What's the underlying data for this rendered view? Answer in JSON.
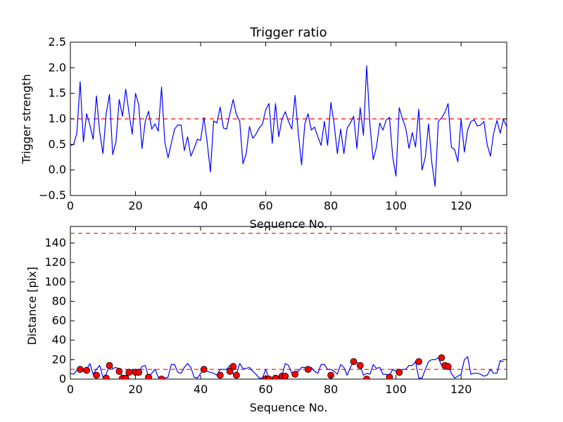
{
  "chart_data": [
    {
      "type": "line",
      "title": "Trigger ratio",
      "xlabel": "Sequence No.",
      "ylabel": "Trigger strength",
      "xlim": [
        0,
        134
      ],
      "ylim": [
        -0.5,
        2.5
      ],
      "xticks": [
        0,
        20,
        40,
        60,
        80,
        100,
        120
      ],
      "yticks": [
        -0.5,
        0.0,
        0.5,
        1.0,
        1.5,
        2.0,
        2.5
      ],
      "ytick_labels": [
        "−0.5",
        "0.0",
        "0.5",
        "1.0",
        "1.5",
        "2.0",
        "2.5"
      ],
      "grid": false,
      "series": [
        {
          "color": "#0000ff",
          "values": [
            0.48,
            0.5,
            0.72,
            1.73,
            0.55,
            1.1,
            0.88,
            0.6,
            1.45,
            0.75,
            0.32,
            1.1,
            1.48,
            0.3,
            0.55,
            1.38,
            1.05,
            1.58,
            1.12,
            0.7,
            1.5,
            1.28,
            0.42,
            0.95,
            1.15,
            0.8,
            0.9,
            0.76,
            1.62,
            0.55,
            0.24,
            0.52,
            0.8,
            0.88,
            0.88,
            0.38,
            0.65,
            0.27,
            0.42,
            0.6,
            0.58,
            1.03,
            0.55,
            -0.04,
            0.96,
            0.92,
            1.23,
            0.82,
            0.8,
            1.1,
            1.38,
            1.08,
            0.96,
            0.12,
            0.32,
            0.85,
            0.62,
            0.7,
            0.82,
            0.9,
            1.18,
            1.3,
            0.52,
            1.3,
            0.65,
            1.0,
            1.14,
            0.95,
            0.8,
            1.46,
            0.72,
            0.1,
            0.9,
            1.1,
            0.78,
            0.84,
            0.65,
            0.48,
            0.95,
            0.48,
            1.32,
            0.9,
            0.32,
            0.8,
            0.32,
            0.82,
            0.92,
            1.05,
            0.42,
            1.22,
            0.68,
            2.04,
            0.88,
            0.2,
            0.45,
            0.92,
            0.78,
            0.98,
            1.03,
            0.25,
            -0.12,
            1.22,
            1.0,
            0.82,
            0.42,
            0.73,
            0.45,
            1.19,
            0.0,
            0.25,
            0.9,
            0.15,
            -0.32,
            0.95,
            1.02,
            1.12,
            1.3,
            0.45,
            0.4,
            0.16,
            1.0,
            0.35,
            0.78,
            0.95,
            0.98,
            0.86,
            0.88,
            0.95,
            0.5,
            0.27,
            0.72,
            0.97,
            0.72,
            0.99,
            0.85
          ]
        }
      ],
      "hlines": [
        {
          "y": 1.0,
          "color": "#ff0000",
          "style": "dashed"
        }
      ]
    },
    {
      "type": "line",
      "title": "",
      "xlabel": "Sequence No.",
      "ylabel": "Distance [pix]",
      "xlim": [
        0,
        134
      ],
      "ylim": [
        0,
        157
      ],
      "xticks": [
        0,
        20,
        40,
        60,
        80,
        100,
        120
      ],
      "yticks": [
        0,
        20,
        40,
        60,
        80,
        100,
        120,
        140
      ],
      "ytick_labels": [
        "0",
        "20",
        "40",
        "60",
        "80",
        "100",
        "120",
        "140"
      ],
      "grid": false,
      "series": [
        {
          "color": "#0000ff",
          "values": [
            6,
            5,
            9,
            10,
            8,
            10,
            16,
            5,
            10,
            14,
            2,
            5,
            14,
            11,
            12,
            10,
            2,
            2,
            8,
            10,
            8,
            7,
            13,
            14,
            2,
            6,
            10,
            2,
            1,
            1,
            2,
            15,
            15,
            7,
            6,
            12,
            16,
            12,
            2,
            1,
            6,
            10,
            8,
            7,
            6,
            4,
            10,
            10,
            10,
            14,
            5,
            5,
            16,
            11,
            11,
            12,
            8,
            5,
            1,
            1,
            10,
            1,
            1,
            3,
            3,
            4,
            16,
            14,
            6,
            8,
            8,
            12,
            12,
            10,
            12,
            8,
            6,
            15,
            15,
            10,
            10,
            8,
            5,
            15,
            12,
            4,
            12,
            18,
            17,
            14,
            4,
            6,
            5,
            15,
            11,
            12,
            5,
            5,
            4,
            10,
            8,
            7,
            10,
            10,
            14,
            14,
            18,
            1,
            1,
            10,
            18,
            20,
            20,
            22,
            14,
            15,
            14,
            6,
            1,
            3,
            5,
            20,
            23,
            5,
            6,
            6,
            5,
            3,
            4,
            10,
            6,
            6,
            19,
            18
          ]
        },
        {
          "type": "scatter",
          "color": "#ff0000",
          "x": [
            3,
            5,
            8,
            11,
            12,
            15,
            16,
            17,
            18,
            20,
            21,
            24,
            28,
            41,
            46,
            49,
            50,
            51,
            60,
            61,
            63,
            65,
            66,
            69,
            73,
            80,
            87,
            89,
            91,
            98,
            101,
            107,
            114,
            115,
            116
          ],
          "values": [
            10,
            9,
            4,
            1,
            14,
            8,
            1,
            1,
            7,
            7,
            7,
            2,
            0,
            10,
            4,
            8,
            13,
            4,
            0,
            0,
            1,
            3,
            3,
            5,
            10,
            4,
            18,
            14,
            0,
            2,
            7,
            18,
            22,
            14,
            13
          ]
        }
      ],
      "hlines": [
        {
          "y": 150,
          "color": "#ff0000",
          "style": "dashed"
        },
        {
          "y": 10,
          "color": "#ff0000",
          "style": "dashed"
        }
      ]
    }
  ]
}
